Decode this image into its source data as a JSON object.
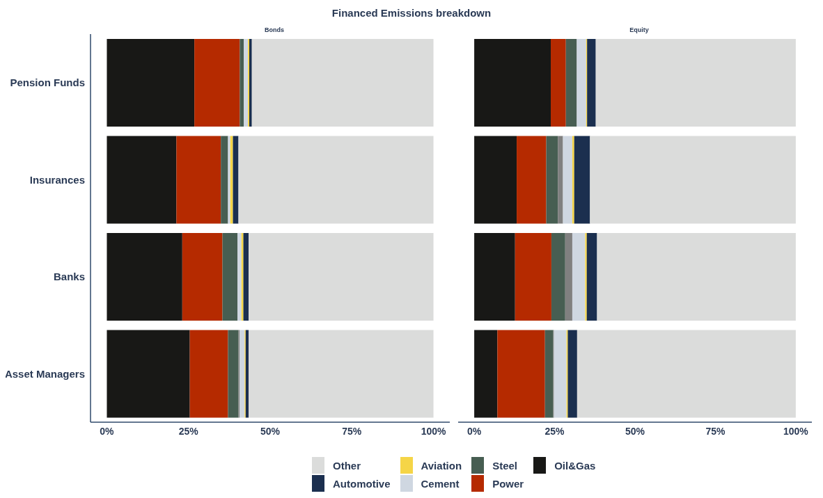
{
  "chart_data": [
    {
      "type": "bar",
      "title": "Financed Emissions breakdown",
      "subtitle": "Bonds",
      "orientation": "horizontal",
      "stacked": true,
      "legend": "bottom",
      "categories": [
        "Pension Funds",
        "Insurances",
        "Banks",
        "Asset Managers"
      ],
      "xlim": [
        -5,
        105
      ],
      "xticks": [
        {
          "value": 0,
          "label": "0%"
        },
        {
          "value": 25,
          "label": "25%"
        },
        {
          "value": 50,
          "label": "50%"
        },
        {
          "value": 75,
          "label": "75%"
        },
        {
          "value": 100,
          "label": "100%"
        }
      ],
      "series": [
        {
          "name": "Oil&Gas",
          "color": "#181816",
          "values": [
            26.8,
            21.3,
            23.1,
            25.4
          ]
        },
        {
          "name": "Power",
          "color": "#b52a00",
          "values": [
            13.9,
            13.6,
            12.3,
            11.7
          ]
        },
        {
          "name": "Steel",
          "color": "#475e52",
          "values": [
            1.2,
            2.2,
            4.6,
            3.2
          ]
        },
        {
          "color": "#808080",
          "values": [
            0,
            0,
            0,
            0.4
          ]
        },
        {
          "name": "Cement",
          "color": "#cfd7e1",
          "values": [
            1.3,
            0.7,
            1.2,
            1.5
          ]
        },
        {
          "name": "Aviation",
          "color": "#f5d547",
          "values": [
            0.4,
            0.8,
            0.6,
            0.3
          ]
        },
        {
          "name": "Automotive",
          "color": "#1b2f4f",
          "values": [
            0.8,
            1.7,
            1.6,
            0.9
          ]
        },
        {
          "name": "Other",
          "color": "#dbdcdb",
          "values": [
            55.6,
            59.7,
            56.6,
            56.6
          ]
        }
      ]
    },
    {
      "type": "bar",
      "subtitle": "Equity",
      "orientation": "horizontal",
      "stacked": true,
      "tick_labels": "x",
      "categories": [
        null,
        null,
        null,
        null
      ],
      "xlim": [
        -5,
        105
      ],
      "xticks": [
        {
          "value": 0,
          "label": "0%"
        },
        {
          "value": 25,
          "label": "25%"
        },
        {
          "value": 50,
          "label": "50%"
        },
        {
          "value": 75,
          "label": "75%"
        },
        {
          "value": 100,
          "label": "100%"
        }
      ],
      "series": [
        {
          "color": "#181816",
          "values": [
            23.8,
            13.2,
            12.7,
            7.2
          ]
        },
        {
          "color": "#b52a00",
          "values": [
            4.7,
            9.2,
            11.3,
            14.8
          ]
        },
        {
          "color": "#475e52",
          "values": [
            3.4,
            3.6,
            4.3,
            2.6
          ]
        },
        {
          "color": "#808080",
          "values": [
            0,
            1.6,
            2.2,
            0.2
          ]
        },
        {
          "color": "#cfd7e1",
          "values": [
            2.9,
            2.9,
            4.0,
            3.9
          ]
        },
        {
          "color": "#f5d547",
          "values": [
            0.3,
            0.6,
            0.5,
            0.4
          ]
        },
        {
          "color": "#1b2f4f",
          "values": [
            2.7,
            4.9,
            3.2,
            2.9
          ]
        },
        {
          "color": "#dbdcdb",
          "values": [
            62.2,
            64.0,
            61.8,
            68.0
          ]
        }
      ]
    }
  ]
}
